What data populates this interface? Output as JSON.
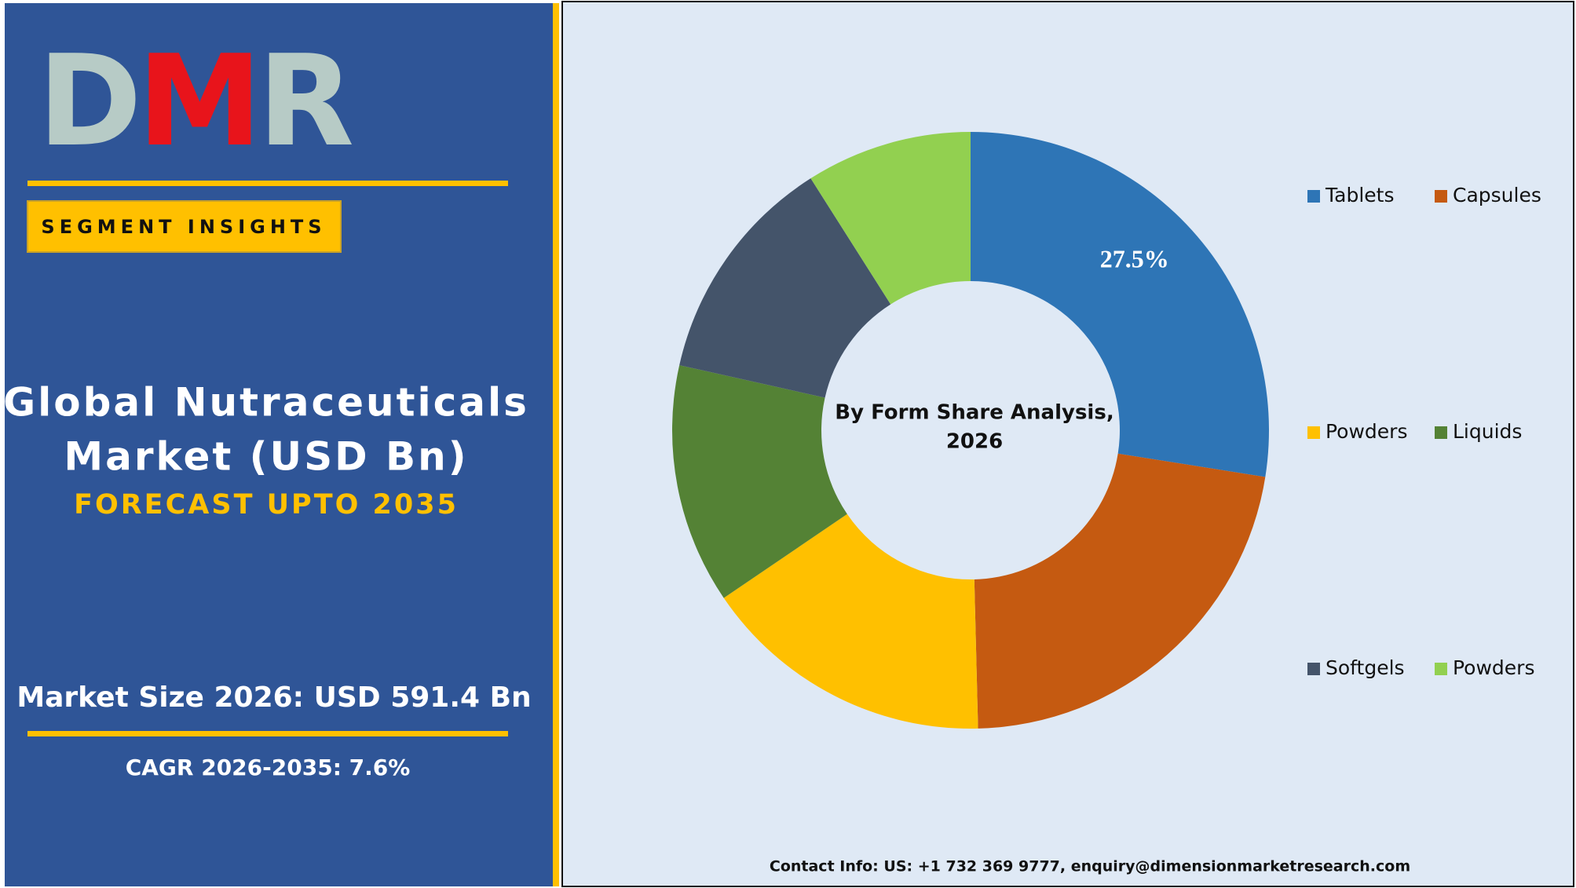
{
  "branding": {
    "logo": "DMR",
    "badge": "SEGMENT INSIGHTS",
    "title_line1": "Global Nutraceuticals",
    "title_line2": "Market (USD Bn)",
    "subtitle": "FORECAST UPTO 2035",
    "market_size": "Market Size 2026: USD 591.4 Bn",
    "cagr": "CAGR 2026-2035: 7.6%"
  },
  "chart_data": {
    "type": "donut",
    "title": [
      "By Form Share Analysis,",
      "2026"
    ],
    "categories": [
      "Tablets",
      "Capsules",
      "Powders",
      "Liquids",
      "Softgels",
      "Powders"
    ],
    "values": [
      27.5,
      22.1,
      15.9,
      13.0,
      12.5,
      9.0
    ],
    "value_labels": [
      "27.5%",
      null,
      null,
      null,
      null,
      null
    ],
    "colors": [
      "#2e75b6",
      "#c55a11",
      "#ffc000",
      "#548235",
      "#44546a",
      "#92d050"
    ],
    "legend": "right"
  },
  "contact": "Contact Info: US: +1 732 369 9777, enquiry@dimensionmarketresearch.com"
}
